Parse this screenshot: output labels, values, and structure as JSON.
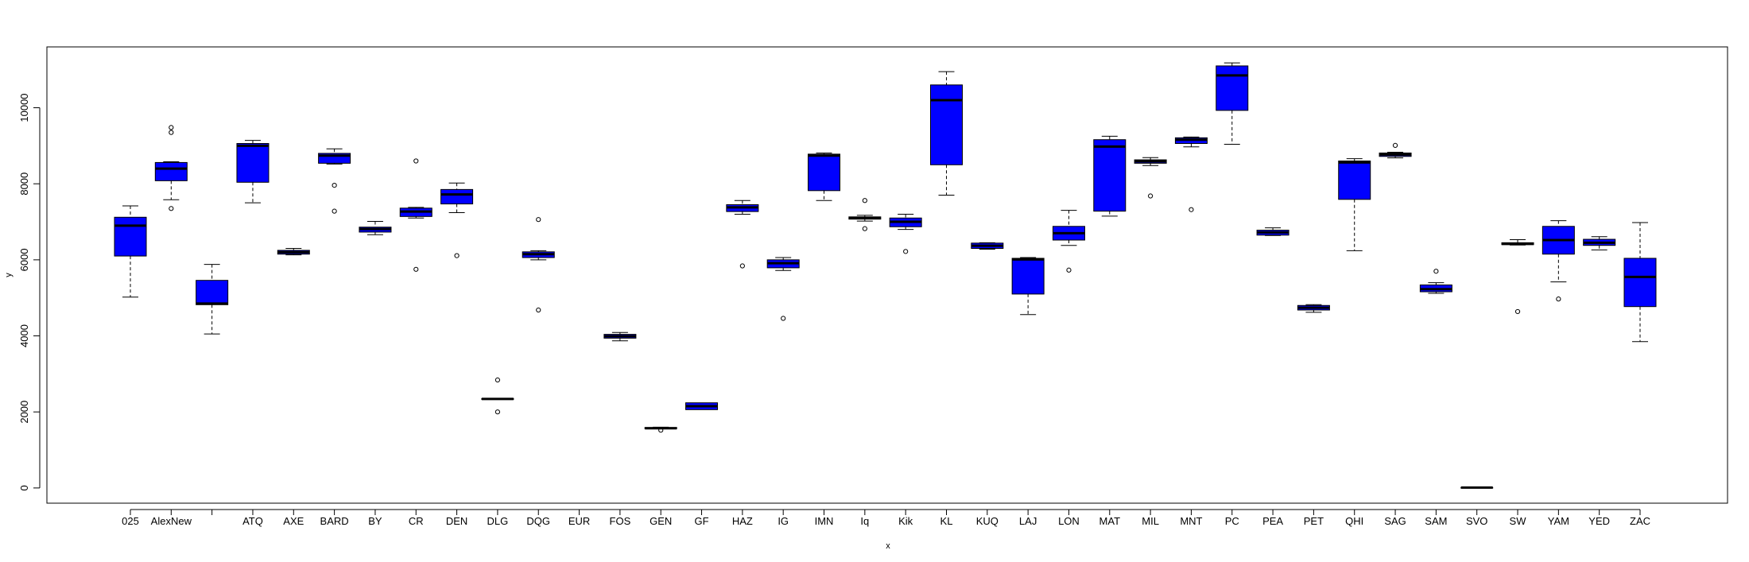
{
  "chart_data": {
    "type": "boxplot",
    "title": "",
    "xlabel": "x",
    "ylabel": "y",
    "ylim": [
      -400,
      11600
    ],
    "yticks": [
      0,
      2000,
      4000,
      6000,
      8000,
      10000
    ],
    "ytick_labels": [
      "0",
      "2000",
      "4000",
      "6000",
      "8000",
      "10000"
    ],
    "box_color": "#0000ff",
    "categories": [
      "025",
      "AlexNew",
      "",
      "ATQ",
      "AXE",
      "BARD",
      "BY",
      "CR",
      "DEN",
      "DLG",
      "DQG",
      "EUR",
      "FOS",
      "GEN",
      "GF",
      "HAZ",
      "IG",
      "IMN",
      "Iq",
      "Kik",
      "KL",
      "KUQ",
      "LAJ",
      "LON",
      "MAT",
      "MIL",
      "MNT",
      "PC",
      "PEA",
      "PET",
      "QHI",
      "SAG",
      "SAM",
      "SVO",
      "SW",
      "YAM",
      "YED",
      "ZAC"
    ],
    "boxes": [
      {
        "category": "025",
        "whisker_low": 5020,
        "q1": 6100,
        "median": 6900,
        "q3": 7120,
        "whisker_high": 7420,
        "outliers": []
      },
      {
        "category": "AlexNew",
        "whisker_low": 7580,
        "q1": 8080,
        "median": 8400,
        "q3": 8560,
        "whisker_high": 8580,
        "outliers": [
          7350,
          9350,
          9480
        ]
      },
      {
        "category": "",
        "whisker_low": 4050,
        "q1": 4820,
        "median": 4850,
        "q3": 5460,
        "whisker_high": 5880,
        "outliers": []
      },
      {
        "category": "ATQ",
        "whisker_low": 7500,
        "q1": 8040,
        "median": 9000,
        "q3": 9060,
        "whisker_high": 9140,
        "outliers": []
      },
      {
        "category": "AXE",
        "whisker_low": 6130,
        "q1": 6150,
        "median": 6200,
        "q3": 6250,
        "whisker_high": 6300,
        "outliers": []
      },
      {
        "category": "BARD",
        "whisker_low": 8520,
        "q1": 8540,
        "median": 8740,
        "q3": 8800,
        "whisker_high": 8920,
        "outliers": [
          7280,
          7960
        ]
      },
      {
        "category": "BY",
        "whisker_low": 6660,
        "q1": 6730,
        "median": 6810,
        "q3": 6860,
        "whisker_high": 7010,
        "outliers": []
      },
      {
        "category": "CR",
        "whisker_low": 7100,
        "q1": 7140,
        "median": 7270,
        "q3": 7360,
        "whisker_high": 7380,
        "outliers": [
          5750,
          8600
        ]
      },
      {
        "category": "DEN",
        "whisker_low": 7240,
        "q1": 7470,
        "median": 7720,
        "q3": 7850,
        "whisker_high": 8020,
        "outliers": [
          6110
        ]
      },
      {
        "category": "DLG",
        "whisker_low": 2330,
        "q1": 2330,
        "median": 2340,
        "q3": 2350,
        "whisker_high": 2350,
        "outliers": [
          2000,
          2840
        ]
      },
      {
        "category": "DQG",
        "whisker_low": 6000,
        "q1": 6060,
        "median": 6150,
        "q3": 6210,
        "whisker_high": 6240,
        "outliers": [
          4680,
          7060
        ]
      },
      {
        "category": "EUR",
        "whisker_low": null,
        "q1": null,
        "median": null,
        "q3": null,
        "whisker_high": null,
        "outliers": []
      },
      {
        "category": "FOS",
        "whisker_low": 3870,
        "q1": 3940,
        "median": 3990,
        "q3": 4040,
        "whisker_high": 4090,
        "outliers": []
      },
      {
        "category": "GEN",
        "whisker_low": 1560,
        "q1": 1560,
        "median": 1570,
        "q3": 1590,
        "whisker_high": 1600,
        "outliers": [
          1520
        ]
      },
      {
        "category": "GF",
        "whisker_low": 2060,
        "q1": 2060,
        "median": 2150,
        "q3": 2240,
        "whisker_high": 2240,
        "outliers": []
      },
      {
        "category": "HAZ",
        "whisker_low": 7200,
        "q1": 7270,
        "median": 7380,
        "q3": 7450,
        "whisker_high": 7560,
        "outliers": [
          5840
        ]
      },
      {
        "category": "IG",
        "whisker_low": 5720,
        "q1": 5790,
        "median": 5910,
        "q3": 6000,
        "whisker_high": 6060,
        "outliers": [
          4460
        ]
      },
      {
        "category": "IMN",
        "whisker_low": 7560,
        "q1": 7820,
        "median": 8740,
        "q3": 8780,
        "whisker_high": 8810,
        "outliers": []
      },
      {
        "category": "Iq",
        "whisker_low": 7020,
        "q1": 7070,
        "median": 7100,
        "q3": 7130,
        "whisker_high": 7170,
        "outliers": [
          6820,
          7560
        ]
      },
      {
        "category": "Kik",
        "whisker_low": 6800,
        "q1": 6870,
        "median": 7000,
        "q3": 7100,
        "whisker_high": 7200,
        "outliers": [
          6220
        ]
      },
      {
        "category": "KL",
        "whisker_low": 7700,
        "q1": 8500,
        "median": 10200,
        "q3": 10600,
        "whisker_high": 10950,
        "outliers": []
      },
      {
        "category": "KUQ",
        "whisker_low": 6280,
        "q1": 6300,
        "median": 6370,
        "q3": 6440,
        "whisker_high": 6450,
        "outliers": []
      },
      {
        "category": "LAJ",
        "whisker_low": 4560,
        "q1": 5100,
        "median": 6010,
        "q3": 6040,
        "whisker_high": 6060,
        "outliers": []
      },
      {
        "category": "LON",
        "whisker_low": 6380,
        "q1": 6520,
        "median": 6700,
        "q3": 6880,
        "whisker_high": 7300,
        "outliers": [
          5730
        ]
      },
      {
        "category": "MAT",
        "whisker_low": 7150,
        "q1": 7280,
        "median": 8980,
        "q3": 9160,
        "whisker_high": 9250,
        "outliers": []
      },
      {
        "category": "MIL",
        "whisker_low": 8480,
        "q1": 8540,
        "median": 8590,
        "q3": 8630,
        "whisker_high": 8690,
        "outliers": [
          7680
        ]
      },
      {
        "category": "MNT",
        "whisker_low": 8970,
        "q1": 9060,
        "median": 9160,
        "q3": 9210,
        "whisker_high": 9230,
        "outliers": [
          7320
        ]
      },
      {
        "category": "PC",
        "whisker_low": 9040,
        "q1": 9930,
        "median": 10850,
        "q3": 11100,
        "whisker_high": 11180,
        "outliers": []
      },
      {
        "category": "PEA",
        "whisker_low": 6640,
        "q1": 6650,
        "median": 6720,
        "q3": 6780,
        "whisker_high": 6840,
        "outliers": []
      },
      {
        "category": "PET",
        "whisker_low": 4620,
        "q1": 4680,
        "median": 4740,
        "q3": 4800,
        "whisker_high": 4820,
        "outliers": []
      },
      {
        "category": "QHI",
        "whisker_low": 6240,
        "q1": 7590,
        "median": 8560,
        "q3": 8600,
        "whisker_high": 8660,
        "outliers": []
      },
      {
        "category": "SAG",
        "whisker_low": 8680,
        "q1": 8720,
        "median": 8770,
        "q3": 8810,
        "whisker_high": 8830,
        "outliers": [
          9010
        ]
      },
      {
        "category": "SAM",
        "whisker_low": 5120,
        "q1": 5160,
        "median": 5230,
        "q3": 5340,
        "whisker_high": 5400,
        "outliers": [
          5700
        ]
      },
      {
        "category": "SVO",
        "whisker_low": 10,
        "q1": 10,
        "median": 10,
        "q3": 10,
        "whisker_high": 10,
        "outliers": []
      },
      {
        "category": "SW",
        "whisker_low": 6390,
        "q1": 6400,
        "median": 6420,
        "q3": 6450,
        "whisker_high": 6530,
        "outliers": [
          4640
        ]
      },
      {
        "category": "YAM",
        "whisker_low": 5420,
        "q1": 6150,
        "median": 6520,
        "q3": 6880,
        "whisker_high": 7030,
        "outliers": [
          4970
        ]
      },
      {
        "category": "YED",
        "whisker_low": 6260,
        "q1": 6380,
        "median": 6450,
        "q3": 6540,
        "whisker_high": 6610,
        "outliers": []
      },
      {
        "category": "ZAC",
        "whisker_low": 3850,
        "q1": 4770,
        "median": 5550,
        "q3": 6040,
        "whisker_high": 6980,
        "outliers": []
      }
    ]
  }
}
